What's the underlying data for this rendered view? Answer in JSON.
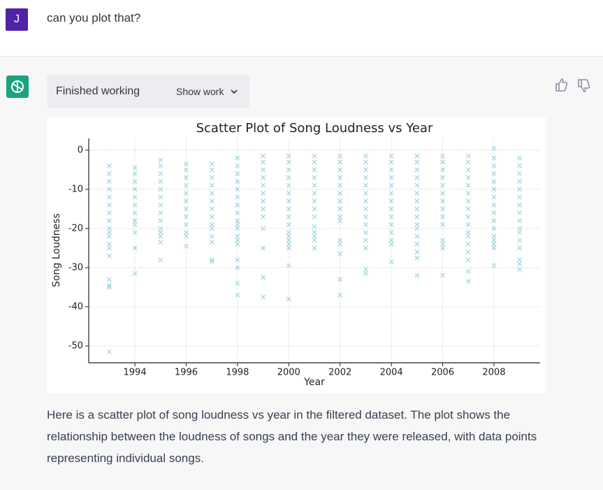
{
  "user": {
    "avatar": "J",
    "message": "can you plot that?"
  },
  "assistant": {
    "status": "Finished working",
    "show_work": "Show work",
    "reply": "Here is a scatter plot of song loudness vs year in the filtered dataset. The plot shows the relationship between the loudness of songs and the year they were released, with data points representing individual songs."
  },
  "chart_data": {
    "type": "scatter",
    "title": "Scatter Plot of Song Loudness vs Year",
    "x_label": "Year",
    "y_label": "Song Loudness",
    "color": "#a3d7df",
    "marker": "x",
    "grid": true,
    "xlim": [
      1992.2,
      2009.8
    ],
    "ylim": [
      -54.3,
      3
    ],
    "xticks": [
      1994,
      1996,
      1998,
      2000,
      2002,
      2004,
      2006,
      2008
    ],
    "yticks": [
      -50,
      -40,
      -30,
      -20,
      -10,
      0
    ],
    "x": [
      1993,
      1994,
      1995,
      1996,
      1997,
      1998,
      1999,
      2000,
      2001,
      2002,
      2003,
      2004,
      2005,
      2006,
      2007,
      2008,
      2009
    ],
    "values": [
      [
        -4,
        -6,
        -8,
        -10,
        -12,
        -14,
        -16,
        -18,
        -20,
        -21,
        -22,
        -24,
        -25,
        -27,
        -33,
        -34.5,
        -35,
        -51.5
      ],
      [
        -4.5,
        -6,
        -8,
        -10,
        -12,
        -14,
        -16,
        -18,
        -19,
        -21,
        -25,
        -31.5
      ],
      [
        -2.5,
        -4,
        -6,
        -8,
        -10,
        -12,
        -14,
        -16,
        -18,
        -20,
        -21,
        -22,
        -23.5,
        -28
      ],
      [
        -3.5,
        -5,
        -7,
        -9,
        -11,
        -13,
        -15,
        -17,
        -19,
        -21,
        -22,
        -24.5
      ],
      [
        -3.5,
        -5,
        -7,
        -9,
        -11,
        -13,
        -15,
        -17,
        -19,
        -20,
        -22,
        -23.5,
        -28,
        -28.5
      ],
      [
        -2,
        -4,
        -6,
        -8,
        -10,
        -12,
        -14,
        -16,
        -18,
        -19,
        -20,
        -22,
        -23,
        -24,
        -28,
        -30,
        -34,
        -37
      ],
      [
        -1.5,
        -3,
        -5,
        -7,
        -9,
        -11,
        -13,
        -15,
        -17,
        -20,
        -25,
        -32.5,
        -37.5
      ],
      [
        -1.5,
        -3,
        -5,
        -7,
        -9,
        -11,
        -13,
        -15,
        -17,
        -19,
        -21,
        -22,
        -23,
        -24,
        -25,
        -29.5,
        -38
      ],
      [
        -1.5,
        -3,
        -5,
        -7,
        -9,
        -11,
        -13,
        -15,
        -17,
        -19.5,
        -21,
        -22,
        -23,
        -25
      ],
      [
        -1.5,
        -3,
        -5,
        -7,
        -9,
        -11,
        -13,
        -15,
        -17,
        -18,
        -23,
        -24,
        -26.5,
        -33,
        -37
      ],
      [
        -1.5,
        -3,
        -5,
        -7,
        -9,
        -11,
        -13,
        -15,
        -17,
        -19,
        -21,
        -23,
        -25,
        -30.5,
        -31.5
      ],
      [
        -1.5,
        -3,
        -5,
        -7,
        -9,
        -11,
        -13,
        -15,
        -17,
        -19,
        -21,
        -23,
        -24,
        -28.5
      ],
      [
        -1.5,
        -3,
        -5,
        -7,
        -9,
        -11,
        -13,
        -15,
        -17,
        -19,
        -20,
        -22,
        -24,
        -26,
        -27.5,
        -32
      ],
      [
        -1.5,
        -3,
        -5,
        -7,
        -9,
        -11,
        -13,
        -15,
        -17,
        -19,
        -23,
        -24,
        -25,
        -32
      ],
      [
        -1.5,
        -3,
        -5,
        -7,
        -9,
        -11,
        -13,
        -15,
        -17,
        -19,
        -21,
        -22,
        -24,
        -26,
        -28,
        -31,
        -33.5
      ],
      [
        0.5,
        -2,
        -4,
        -6,
        -8,
        -10,
        -12,
        -14,
        -16,
        -18,
        -20,
        -22,
        -23,
        -24,
        -25,
        -29.5
      ],
      [
        -2,
        -4,
        -6,
        -8,
        -10,
        -12,
        -14,
        -16,
        -18,
        -20,
        -21,
        -23,
        -25,
        -28,
        -29,
        -30.5
      ]
    ]
  }
}
